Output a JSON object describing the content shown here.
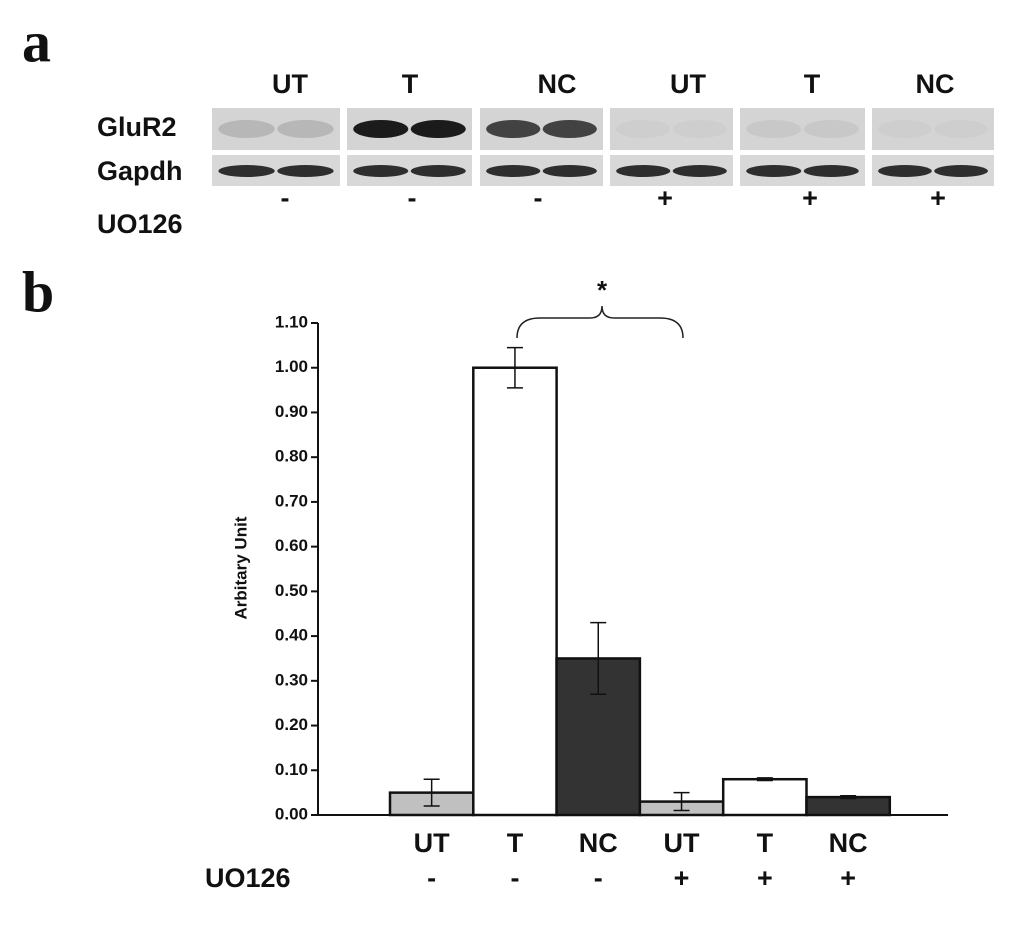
{
  "panel_a": {
    "label": "a",
    "groups": [
      "UT",
      "T",
      "NC",
      "UT",
      "T",
      "NC"
    ],
    "rows": [
      "GluR2",
      "Gapdh"
    ],
    "treatment_label": "UO126",
    "treatment": [
      "-",
      "-",
      "-",
      "+",
      "+",
      "+"
    ]
  },
  "chart_data": {
    "type": "bar",
    "panel_label": "b",
    "ylabel": "Arbitary Unit",
    "categories": [
      "UT",
      "T",
      "NC",
      "UT",
      "T",
      "NC"
    ],
    "treatment_label": "UO126",
    "treatment": [
      "-",
      "-",
      "-",
      "+",
      "+",
      "+"
    ],
    "values": [
      0.05,
      1.0,
      0.35,
      0.03,
      0.08,
      0.04
    ],
    "errors": [
      0.03,
      0.045,
      0.08,
      0.02,
      0.003,
      0.003
    ],
    "colors": [
      "#c0c0c0",
      "#ffffff",
      "#333333",
      "#c0c0c0",
      "#ffffff",
      "#333333"
    ],
    "ylim": [
      0,
      1.1
    ],
    "yticks": [
      {
        "value": 0,
        "label": "0.00"
      },
      {
        "value": 0.1,
        "label": "0.10"
      },
      {
        "value": 0.2,
        "label": "0.20"
      },
      {
        "value": 0.3,
        "label": "0.30"
      },
      {
        "value": 0.4,
        "label": "0.40"
      },
      {
        "value": 0.5,
        "label": "0.50"
      },
      {
        "value": 0.6,
        "label": "0.60"
      },
      {
        "value": 0.7,
        "label": "0.70"
      },
      {
        "value": 0.8,
        "label": "0.80"
      },
      {
        "value": 0.9,
        "label": "0.90"
      },
      {
        "value": 1.0,
        "label": "1.00"
      },
      {
        "value": 1.1,
        "label": "1.10"
      }
    ],
    "annotation": "*"
  }
}
